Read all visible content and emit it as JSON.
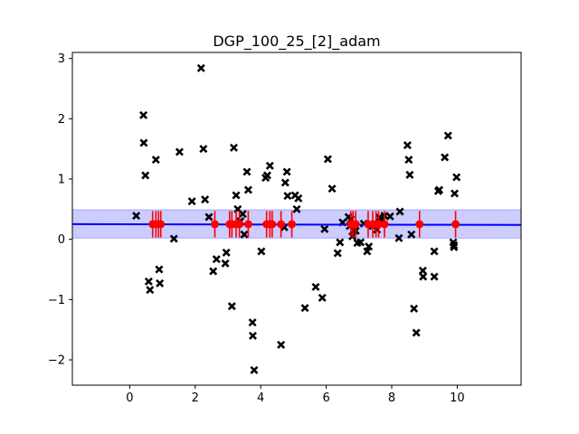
{
  "chart_data": {
    "type": "scatter",
    "title": "DGP_100_25_[2]_adam",
    "xlabel": "",
    "ylabel": "",
    "xlim": [
      -1.75,
      11.95
    ],
    "ylim": [
      -2.42,
      3.1
    ],
    "xticks": [
      0,
      2,
      4,
      6,
      8,
      10
    ],
    "yticks": [
      -2,
      -1,
      0,
      1,
      2,
      3
    ],
    "grid": false,
    "colors": {
      "observations": "#000000",
      "mean_line": "#0000ff",
      "band_fill": "#0000ff",
      "inducing": "#ff0000"
    },
    "observations": [
      [
        0.2,
        0.39
      ],
      [
        0.42,
        2.06
      ],
      [
        0.43,
        1.6
      ],
      [
        0.48,
        1.06
      ],
      [
        0.58,
        -0.7
      ],
      [
        0.62,
        -0.84
      ],
      [
        0.8,
        1.32
      ],
      [
        0.9,
        -0.5
      ],
      [
        0.92,
        -0.73
      ],
      [
        1.35,
        0.01
      ],
      [
        1.52,
        1.45
      ],
      [
        1.9,
        0.63
      ],
      [
        2.18,
        2.84
      ],
      [
        2.25,
        1.5
      ],
      [
        2.3,
        0.66
      ],
      [
        2.42,
        0.37
      ],
      [
        2.55,
        -0.53
      ],
      [
        2.65,
        -0.33
      ],
      [
        2.92,
        -0.4
      ],
      [
        2.95,
        -0.22
      ],
      [
        3.12,
        -1.11
      ],
      [
        3.18,
        1.52
      ],
      [
        3.25,
        0.73
      ],
      [
        3.3,
        0.5
      ],
      [
        3.38,
        0.3
      ],
      [
        3.45,
        0.42
      ],
      [
        3.5,
        0.08
      ],
      [
        3.58,
        1.12
      ],
      [
        3.62,
        0.82
      ],
      [
        3.75,
        -1.38
      ],
      [
        3.76,
        -1.6
      ],
      [
        3.8,
        -2.17
      ],
      [
        4.02,
        -0.2
      ],
      [
        4.15,
        1.02
      ],
      [
        4.2,
        1.06
      ],
      [
        4.28,
        1.22
      ],
      [
        4.62,
        -1.75
      ],
      [
        4.72,
        0.2
      ],
      [
        4.75,
        0.94
      ],
      [
        4.8,
        1.12
      ],
      [
        4.82,
        0.72
      ],
      [
        5.05,
        0.73
      ],
      [
        5.1,
        0.5
      ],
      [
        5.15,
        0.68
      ],
      [
        5.35,
        -1.14
      ],
      [
        5.68,
        -0.79
      ],
      [
        5.88,
        -0.97
      ],
      [
        5.95,
        0.17
      ],
      [
        6.05,
        1.33
      ],
      [
        6.18,
        0.84
      ],
      [
        6.35,
        -0.23
      ],
      [
        6.42,
        -0.05
      ],
      [
        6.5,
        0.28
      ],
      [
        6.68,
        0.37
      ],
      [
        6.72,
        0.22
      ],
      [
        6.75,
        0.33
      ],
      [
        6.8,
        0.05
      ],
      [
        6.85,
        0.15
      ],
      [
        6.9,
        0.14
      ],
      [
        6.95,
        -0.06
      ],
      [
        7.05,
        -0.05
      ],
      [
        7.15,
        0.26
      ],
      [
        7.25,
        -0.2
      ],
      [
        7.3,
        -0.12
      ],
      [
        7.42,
        0.22
      ],
      [
        7.55,
        0.16
      ],
      [
        7.62,
        0.36
      ],
      [
        7.68,
        0.28
      ],
      [
        7.78,
        0.39
      ],
      [
        7.95,
        0.38
      ],
      [
        8.25,
        0.46
      ],
      [
        8.22,
        0.02
      ],
      [
        8.48,
        1.56
      ],
      [
        8.52,
        1.32
      ],
      [
        8.55,
        1.07
      ],
      [
        8.6,
        0.08
      ],
      [
        8.68,
        -1.15
      ],
      [
        8.75,
        -1.55
      ],
      [
        8.95,
        -0.52
      ],
      [
        8.96,
        -0.62
      ],
      [
        9.3,
        -0.62
      ],
      [
        9.3,
        -0.2
      ],
      [
        9.42,
        0.8
      ],
      [
        9.45,
        0.82
      ],
      [
        9.62,
        1.36
      ],
      [
        9.72,
        1.72
      ],
      [
        9.88,
        -0.05
      ],
      [
        9.9,
        -0.13
      ],
      [
        9.9,
        -0.1
      ],
      [
        9.92,
        0.76
      ],
      [
        9.98,
        1.03
      ]
    ],
    "mean_line": {
      "intercept": 0.25,
      "slope": -0.001
    },
    "band": {
      "upper": 0.49,
      "lower": 0.02
    },
    "inducing_points": {
      "x": [
        0.7,
        0.8,
        0.88,
        0.95,
        2.6,
        3.05,
        3.12,
        3.25,
        3.35,
        3.62,
        4.18,
        4.28,
        4.35,
        4.62,
        4.95,
        6.75,
        6.82,
        6.9,
        7.28,
        7.42,
        7.52,
        7.6,
        7.78,
        8.85,
        9.95
      ],
      "y": 0.25,
      "err": 0.22
    }
  }
}
